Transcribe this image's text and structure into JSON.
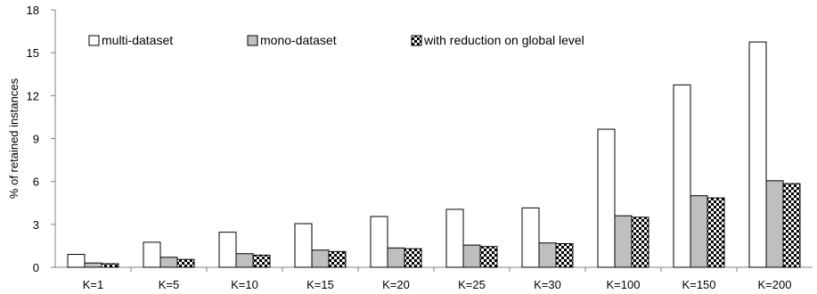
{
  "chart_data": {
    "type": "bar",
    "title": "",
    "xlabel": "",
    "ylabel": "% of retained instances",
    "ylim": [
      0,
      18
    ],
    "yticks": [
      0,
      3,
      6,
      9,
      12,
      15,
      18
    ],
    "grid": false,
    "legend_position": "top",
    "categories": [
      "K=1",
      "K=5",
      "K=10",
      "K=15",
      "K=20",
      "K=25",
      "K=30",
      "K=100",
      "K=150",
      "K=200"
    ],
    "series": [
      {
        "name": "multi-dataset",
        "fill": "#ffffff",
        "pattern": "none",
        "values": [
          0.9,
          1.75,
          2.45,
          3.05,
          3.55,
          4.05,
          4.15,
          9.65,
          12.75,
          15.75
        ]
      },
      {
        "name": "mono-dataset",
        "fill": "#bfbfbf",
        "pattern": "none",
        "values": [
          0.3,
          0.7,
          0.95,
          1.2,
          1.35,
          1.55,
          1.7,
          3.6,
          5.0,
          6.05
        ]
      },
      {
        "name": "with reduction on global level",
        "fill": "#ffffff",
        "pattern": "checker",
        "values": [
          0.25,
          0.55,
          0.85,
          1.1,
          1.3,
          1.45,
          1.65,
          3.5,
          4.85,
          5.85
        ]
      }
    ]
  }
}
